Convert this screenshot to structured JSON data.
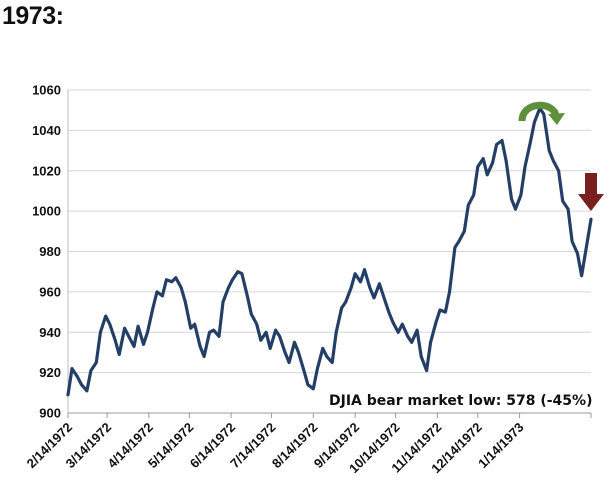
{
  "heading": "1973:",
  "chart_data": {
    "type": "line",
    "title": "",
    "xlabel": "",
    "ylabel": "",
    "ylim": [
      900,
      1060
    ],
    "yticks": [
      900,
      920,
      940,
      960,
      980,
      1000,
      1020,
      1040,
      1060
    ],
    "grid": true,
    "x_tick_labels": [
      "2/14/1972",
      "3/14/1972",
      "4/14/1972",
      "5/14/1972",
      "6/14/1972",
      "7/14/1972",
      "8/14/1972",
      "9/14/1972",
      "10/14/1972",
      "11/14/1972",
      "12/14/1972",
      "1/14/1973"
    ],
    "annotation": "DJIA bear market low: 578  (-45%)",
    "colors": {
      "line": "#243f66",
      "top_arrow": "#5f8f3a",
      "down_arrow": "#7a1f1f",
      "grid": "#d6d6d6"
    },
    "markers": [
      {
        "icon": "curved-arrow-icon",
        "meaning": "rounding top",
        "near_date": "1/8/1973"
      },
      {
        "icon": "down-arrow-icon",
        "meaning": "decline",
        "near_date": "2/28/1973"
      }
    ],
    "series": [
      {
        "points": [
          [
            "2/14/1972",
            909
          ],
          [
            "2/17/1972",
            922
          ],
          [
            "2/21/1972",
            918
          ],
          [
            "2/24/1972",
            914
          ],
          [
            "2/28/1972",
            911
          ],
          [
            "3/2/1972",
            921
          ],
          [
            "3/6/1972",
            925
          ],
          [
            "3/9/1972",
            940
          ],
          [
            "3/13/1972",
            948
          ],
          [
            "3/16/1972",
            944
          ],
          [
            "3/20/1972",
            936
          ],
          [
            "3/23/1972",
            929
          ],
          [
            "3/27/1972",
            942
          ],
          [
            "3/30/1972",
            938
          ],
          [
            "4/3/1972",
            933
          ],
          [
            "4/6/1972",
            943
          ],
          [
            "4/10/1972",
            934
          ],
          [
            "4/13/1972",
            940
          ],
          [
            "4/17/1972",
            952
          ],
          [
            "4/20/1972",
            960
          ],
          [
            "4/24/1972",
            958
          ],
          [
            "4/27/1972",
            966
          ],
          [
            "5/1/1972",
            965
          ],
          [
            "5/4/1972",
            967
          ],
          [
            "5/8/1972",
            962
          ],
          [
            "5/11/1972",
            955
          ],
          [
            "5/15/1972",
            942
          ],
          [
            "5/18/1972",
            944
          ],
          [
            "5/22/1972",
            933
          ],
          [
            "5/25/1972",
            928
          ],
          [
            "5/29/1972",
            940
          ],
          [
            "6/1/1972",
            941
          ],
          [
            "6/5/1972",
            938
          ],
          [
            "6/8/1972",
            955
          ],
          [
            "6/12/1972",
            962
          ],
          [
            "6/15/1972",
            966
          ],
          [
            "6/19/1972",
            970
          ],
          [
            "6/22/1972",
            969
          ],
          [
            "6/26/1972",
            958
          ],
          [
            "6/29/1972",
            949
          ],
          [
            "7/3/1972",
            944
          ],
          [
            "7/6/1972",
            936
          ],
          [
            "7/10/1972",
            940
          ],
          [
            "7/13/1972",
            932
          ],
          [
            "7/17/1972",
            941
          ],
          [
            "7/20/1972",
            938
          ],
          [
            "7/24/1972",
            930
          ],
          [
            "7/27/1972",
            925
          ],
          [
            "7/31/1972",
            935
          ],
          [
            "8/3/1972",
            930
          ],
          [
            "8/7/1972",
            921
          ],
          [
            "8/10/1972",
            914
          ],
          [
            "8/14/1972",
            912
          ],
          [
            "8/17/1972",
            922
          ],
          [
            "8/21/1972",
            932
          ],
          [
            "8/24/1972",
            928
          ],
          [
            "8/28/1972",
            925
          ],
          [
            "8/31/1972",
            940
          ],
          [
            "9/4/1972",
            952
          ],
          [
            "9/7/1972",
            955
          ],
          [
            "9/11/1972",
            962
          ],
          [
            "9/14/1972",
            969
          ],
          [
            "9/18/1972",
            965
          ],
          [
            "9/21/1972",
            971
          ],
          [
            "9/25/1972",
            962
          ],
          [
            "9/28/1972",
            957
          ],
          [
            "10/2/1972",
            964
          ],
          [
            "10/5/1972",
            958
          ],
          [
            "10/9/1972",
            950
          ],
          [
            "10/12/1972",
            945
          ],
          [
            "10/16/1972",
            940
          ],
          [
            "10/19/1972",
            944
          ],
          [
            "10/23/1972",
            938
          ],
          [
            "10/26/1972",
            935
          ],
          [
            "10/30/1972",
            941
          ],
          [
            "11/2/1972",
            928
          ],
          [
            "11/6/1972",
            921
          ],
          [
            "11/9/1972",
            935
          ],
          [
            "11/13/1972",
            945
          ],
          [
            "11/16/1972",
            951
          ],
          [
            "11/20/1972",
            950
          ],
          [
            "11/23/1972",
            960
          ],
          [
            "11/27/1972",
            982
          ],
          [
            "11/30/1972",
            985
          ],
          [
            "12/4/1972",
            990
          ],
          [
            "12/7/1972",
            1003
          ],
          [
            "12/11/1972",
            1008
          ],
          [
            "12/14/1972",
            1022
          ],
          [
            "12/18/1972",
            1026
          ],
          [
            "12/21/1972",
            1018
          ],
          [
            "12/25/1972",
            1024
          ],
          [
            "12/28/1972",
            1033
          ],
          [
            "1/1/1973",
            1035
          ],
          [
            "1/4/1973",
            1025
          ],
          [
            "1/8/1973",
            1006
          ],
          [
            "1/11/1973",
            1001
          ],
          [
            "1/15/1973",
            1008
          ],
          [
            "1/18/1973",
            1022
          ],
          [
            "1/22/1973",
            1034
          ],
          [
            "1/25/1973",
            1044
          ],
          [
            "1/29/1973",
            1051
          ],
          [
            "2/1/1973",
            1048
          ],
          [
            "2/5/1973",
            1030
          ],
          [
            "2/8/1973",
            1025
          ],
          [
            "2/12/1973",
            1020
          ],
          [
            "2/15/1973",
            1005
          ],
          [
            "2/19/1973",
            1001
          ],
          [
            "2/22/1973",
            985
          ],
          [
            "2/26/1973",
            979
          ],
          [
            "3/1/1973",
            968
          ],
          [
            "3/5/1973",
            984
          ],
          [
            "3/8/1973",
            996
          ]
        ]
      }
    ]
  }
}
